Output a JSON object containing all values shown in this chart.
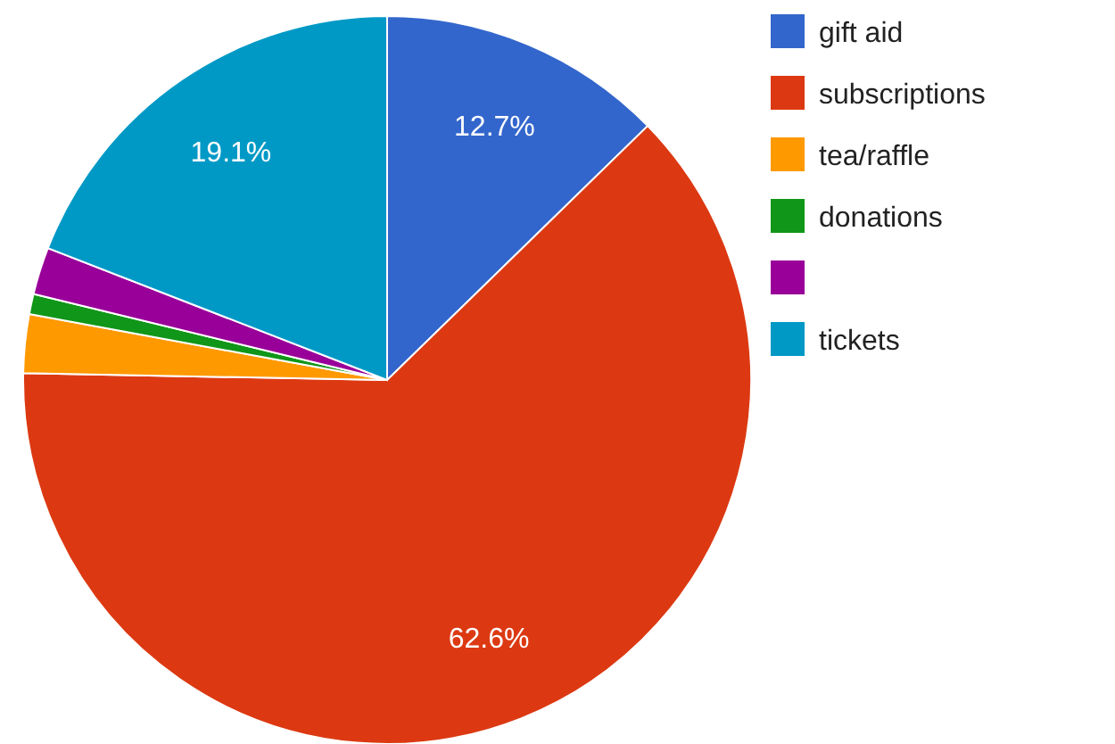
{
  "chart_data": {
    "type": "pie",
    "categories": [
      "gift aid",
      "subscriptions",
      "tea/raffle",
      "donations",
      null,
      "tickets"
    ],
    "values": [
      12.7,
      62.6,
      2.6,
      0.9,
      2.1,
      19.1
    ],
    "colors": [
      "#3366cc",
      "#dc3912",
      "#ff9900",
      "#109618",
      "#990099",
      "#0099c6"
    ],
    "value_labels": [
      "12.7%",
      "62.6%",
      null,
      null,
      null,
      "19.1%"
    ],
    "legend": "right"
  }
}
